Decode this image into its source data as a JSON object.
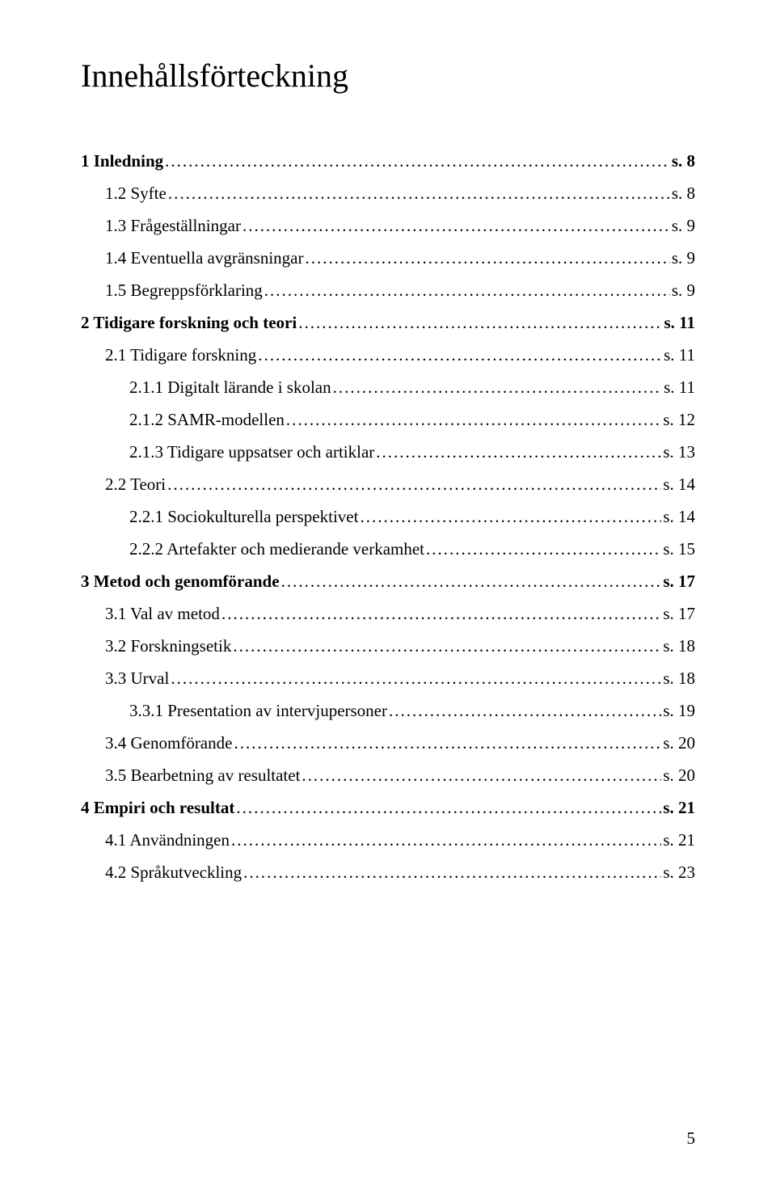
{
  "title": "Innehållsförteckning",
  "page_number": "5",
  "entries": [
    {
      "label": "1 Inledning",
      "page": "s. 8",
      "level": 0,
      "bold": true
    },
    {
      "label": "1.2 Syfte",
      "page": "s. 8",
      "level": 1,
      "bold": false
    },
    {
      "label": "1.3 Frågeställningar",
      "page": "s. 9",
      "level": 1,
      "bold": false
    },
    {
      "label": "1.4 Eventuella avgränsningar",
      "page": "s. 9",
      "level": 1,
      "bold": false
    },
    {
      "label": "1.5 Begreppsförklaring",
      "page": "s. 9",
      "level": 1,
      "bold": false
    },
    {
      "label": "2 Tidigare forskning och teori",
      "page": "s. 11",
      "level": 0,
      "bold": true
    },
    {
      "label": "2.1 Tidigare forskning",
      "page": "s. 11",
      "level": 1,
      "bold": false
    },
    {
      "label": "2.1.1 Digitalt lärande i skolan",
      "page": "s. 11",
      "level": 2,
      "bold": false
    },
    {
      "label": "2.1.2 SAMR-modellen",
      "page": "s. 12",
      "level": 2,
      "bold": false
    },
    {
      "label": "2.1.3 Tidigare uppsatser och artiklar",
      "page": "s. 13",
      "level": 2,
      "bold": false
    },
    {
      "label": "2.2 Teori",
      "page": "s. 14",
      "level": 1,
      "bold": false
    },
    {
      "label": "2.2.1 Sociokulturella perspektivet",
      "page": "s. 14",
      "level": 2,
      "bold": false
    },
    {
      "label": "2.2.2 Artefakter och medierande verkamhet",
      "page": "s. 15",
      "level": 2,
      "bold": false
    },
    {
      "label": "3 Metod och genomförande",
      "page": "s. 17",
      "level": 0,
      "bold": true
    },
    {
      "label": "3.1 Val av metod",
      "page": "s. 17",
      "level": 1,
      "bold": false
    },
    {
      "label": "3.2 Forskningsetik",
      "page": "s. 18",
      "level": 1,
      "bold": false
    },
    {
      "label": "3.3 Urval",
      "page": "s. 18",
      "level": 1,
      "bold": false
    },
    {
      "label": "3.3.1 Presentation av intervjupersoner",
      "page": "s. 19",
      "level": 2,
      "bold": false
    },
    {
      "label": "3.4 Genomförande",
      "page": "s. 20",
      "level": 1,
      "bold": false
    },
    {
      "label": "3.5 Bearbetning av resultatet",
      "page": "s. 20",
      "level": 1,
      "bold": false
    },
    {
      "label": "4 Empiri och resultat",
      "page": "s. 21",
      "level": 0,
      "bold": true
    },
    {
      "label": "4.1 Användningen",
      "page": "s. 21",
      "level": 1,
      "bold": false
    },
    {
      "label": "4.2 Språkutveckling",
      "page": "s. 23",
      "level": 1,
      "bold": false
    }
  ]
}
